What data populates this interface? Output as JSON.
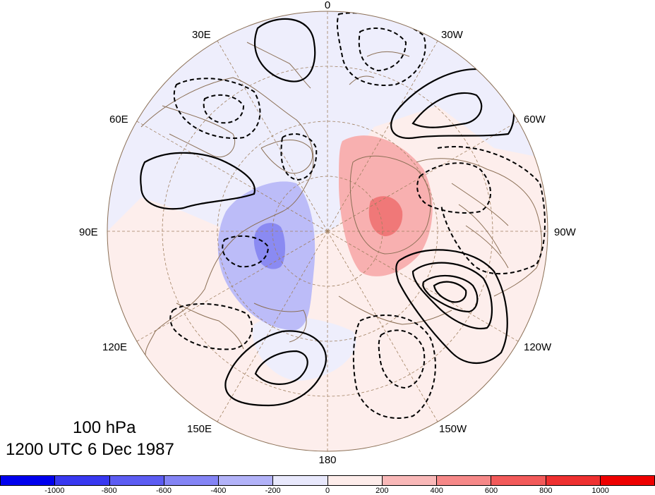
{
  "title": {
    "level": "100 hPa",
    "time": "1200 UTC 6 Dec 1987"
  },
  "longitude_labels": [
    "0",
    "30W",
    "60W",
    "90W",
    "120W",
    "150W",
    "180",
    "150E",
    "120E",
    "90E",
    "60E",
    "30E"
  ],
  "colorbar": {
    "colors": [
      "#0000ee",
      "#3838f0",
      "#5c5cf2",
      "#8484f5",
      "#b2b2f8",
      "#e8e8fc",
      "#fdecea",
      "#f9b8b8",
      "#f68888",
      "#f25a5a",
      "#ee3030",
      "#ee0000"
    ],
    "tick_labels": [
      "-1000",
      "-800",
      "-600",
      "-400",
      "-200",
      "0",
      "200",
      "400",
      "600",
      "800",
      "1000"
    ]
  },
  "map_colors": {
    "background_neg": "#eeeefc",
    "background_pos": "#fdeeec",
    "neg_medium": "#bcbcf8",
    "neg_strong": "#8a8af2",
    "pos_medium": "#f8b0b0",
    "pos_strong": "#f07878",
    "coast": "#8b6f55",
    "grid": "#a08060"
  }
}
